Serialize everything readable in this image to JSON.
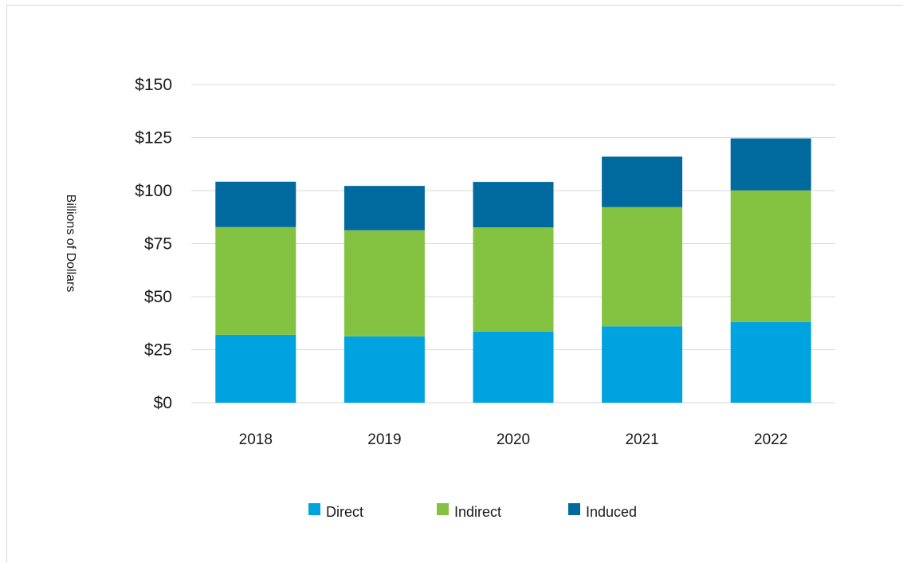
{
  "chart_data": {
    "type": "bar",
    "stacked": true,
    "title": "",
    "xlabel": "",
    "ylabel": "Billions of Dollars",
    "ylim": [
      0,
      150
    ],
    "yticks": [
      0,
      25,
      50,
      75,
      100,
      125,
      150
    ],
    "ytick_labels": [
      "$0",
      "$25",
      "$50",
      "$75",
      "$100",
      "$125",
      "$150"
    ],
    "grid": true,
    "legend_position": "bottom",
    "categories": [
      "2018",
      "2019",
      "2020",
      "2021",
      "2022"
    ],
    "series": [
      {
        "name": "Direct",
        "color": "#00a3e0",
        "values": [
          32,
          31.3,
          33.5,
          36,
          38
        ]
      },
      {
        "name": "Indirect",
        "color": "#84c341",
        "values": [
          50.8,
          50,
          49.2,
          56.2,
          62.1
        ]
      },
      {
        "name": "Induced",
        "color": "#006a9e",
        "values": [
          21.4,
          20.9,
          21.4,
          23.8,
          24.5
        ]
      }
    ]
  }
}
